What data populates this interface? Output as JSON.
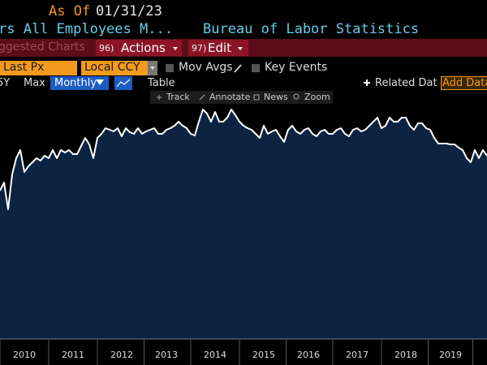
{
  "header": {
    "as_of_label": "As Of",
    "as_of_date": "01/31/23",
    "security": "rs All Employees M...",
    "source": "Bureau of Labor Statistics"
  },
  "menu_bar": {
    "suggested": "ggested Charts",
    "actions_number": "96)",
    "actions": "Actions",
    "edit_number": "97)",
    "edit": "Edit"
  },
  "options_bar": {
    "field": "Last Px",
    "currency": "Local CCY",
    "mov_avgs": "Mov Avgs",
    "key_events": "Key Events"
  },
  "range_bar": {
    "ranges": [
      "5Y",
      "Max"
    ],
    "frequency": "Monthly",
    "table": "Table",
    "related": "Related Dat",
    "add_data": "Add Data"
  },
  "tools": [
    "Track",
    "Annotate",
    "News",
    "Zoom"
  ],
  "chart_data": {
    "type": "area",
    "color": "#ffffff",
    "fill": "#0c2442",
    "categories": [
      null,
      null,
      null,
      null,
      null,
      null,
      "2010",
      null,
      null,
      null,
      null,
      null,
      null,
      null,
      null,
      null,
      null,
      null,
      "2011",
      null,
      null,
      null,
      null,
      null,
      null,
      null,
      null,
      null,
      null,
      null,
      "2012",
      null,
      null,
      null,
      null,
      null,
      null,
      null,
      null,
      null,
      null,
      "2013",
      null,
      null,
      null,
      null,
      null,
      null,
      null,
      null,
      null,
      null,
      null,
      "2014",
      null,
      null,
      null,
      null,
      null,
      null,
      null,
      null,
      null,
      null,
      null,
      "2015",
      null,
      null,
      null,
      null,
      null,
      null,
      null,
      null,
      null,
      null,
      "2016",
      null,
      null,
      null,
      null,
      null,
      null,
      null,
      null,
      null,
      null,
      null,
      "2017",
      null,
      null,
      null,
      null,
      null,
      null,
      null,
      null,
      null,
      null,
      null,
      "2018",
      null,
      null,
      null,
      null,
      null,
      null,
      null,
      null,
      null,
      null,
      "2019",
      null,
      null,
      null,
      null,
      null,
      null,
      null,
      null,
      null
    ],
    "values": [
      183,
      193,
      160,
      203,
      223,
      233,
      206,
      213,
      218,
      223,
      220,
      226,
      223,
      233,
      223,
      233,
      230,
      233,
      228,
      228,
      238,
      248,
      240,
      223,
      248,
      253,
      260,
      258,
      256,
      260,
      250,
      260,
      255,
      253,
      260,
      253,
      256,
      258,
      260,
      253,
      253,
      258,
      260,
      263,
      268,
      263,
      260,
      253,
      251,
      268,
      283,
      278,
      268,
      280,
      268,
      268,
      273,
      283,
      276,
      268,
      263,
      260,
      258,
      253,
      248,
      263,
      253,
      256,
      258,
      250,
      243,
      258,
      263,
      256,
      253,
      258,
      260,
      253,
      250,
      256,
      258,
      253,
      253,
      258,
      260,
      253,
      250,
      258,
      260,
      256,
      258,
      263,
      268,
      273,
      260,
      263,
      273,
      268,
      268,
      273,
      273,
      263,
      258,
      266,
      266,
      260,
      258,
      248,
      241,
      241,
      241,
      240,
      240,
      236,
      233,
      223,
      218,
      233,
      223,
      233,
      226
    ],
    "ylim": [
      0,
      290
    ]
  }
}
